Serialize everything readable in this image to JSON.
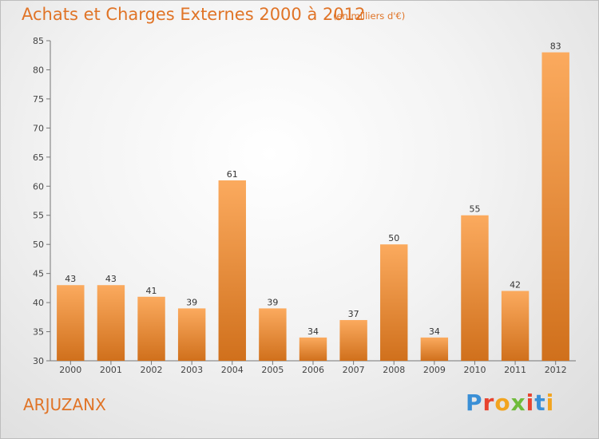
{
  "header": {
    "title": "Achats et Charges Externes 2000 à 2012",
    "unit": "(en milliers d'€)"
  },
  "footer": {
    "commune": "ARJUZANX",
    "brand": "Proxiti"
  },
  "colors": {
    "accent": "#e07427",
    "bar_top": "#f9a85b",
    "bar_bottom": "#d2731e"
  },
  "chart_data": {
    "type": "bar",
    "title": "Achats et Charges Externes 2000 à 2012",
    "subtitle": "(en milliers d'€)",
    "categories": [
      "2000",
      "2001",
      "2002",
      "2003",
      "2004",
      "2005",
      "2006",
      "2007",
      "2008",
      "2009",
      "2010",
      "2011",
      "2012"
    ],
    "values": [
      43,
      43,
      41,
      39,
      61,
      39,
      34,
      37,
      50,
      34,
      55,
      42,
      83
    ],
    "ylim": [
      30,
      85
    ],
    "yticks": [
      30,
      35,
      40,
      45,
      50,
      55,
      60,
      65,
      70,
      75,
      80,
      85
    ],
    "grid": false,
    "data_labels": true
  }
}
